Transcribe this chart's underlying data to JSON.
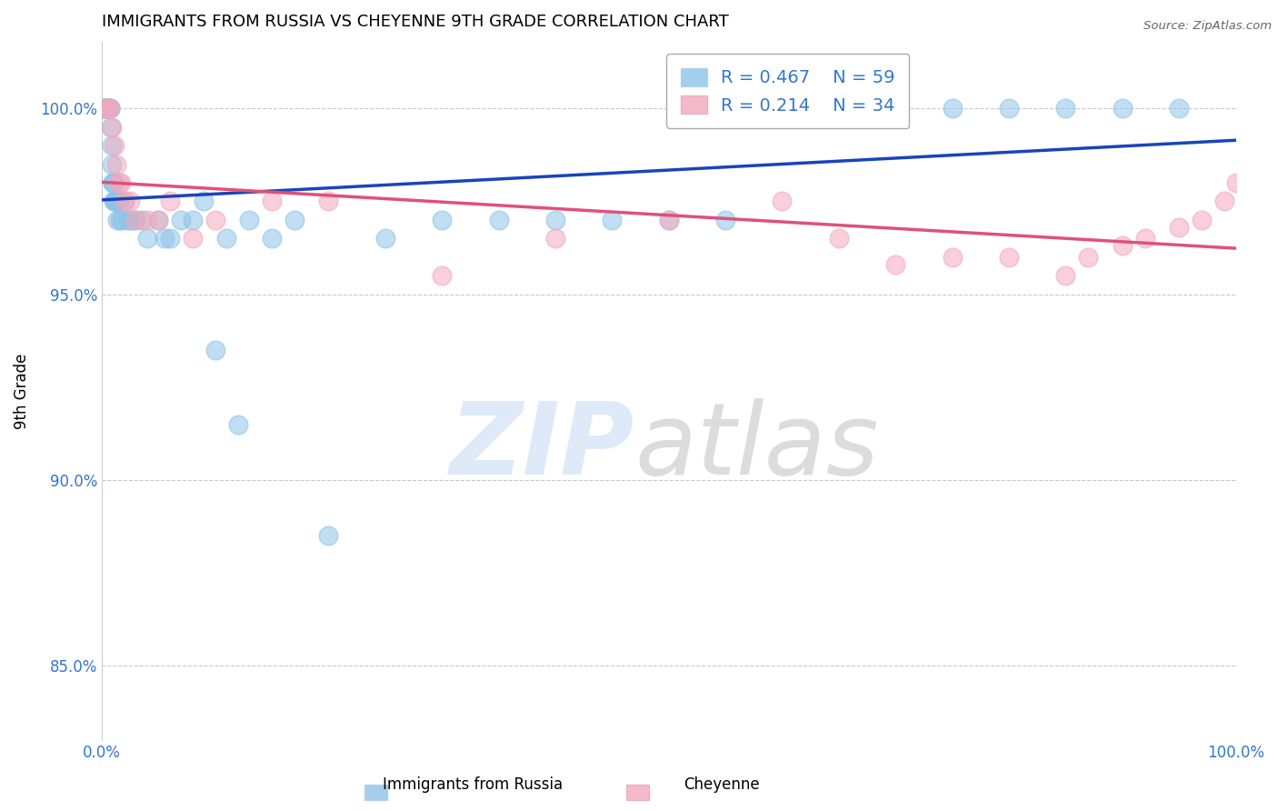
{
  "title": "IMMIGRANTS FROM RUSSIA VS CHEYENNE 9TH GRADE CORRELATION CHART",
  "source": "Source: ZipAtlas.com",
  "ylabel": "9th Grade",
  "xlim": [
    0,
    100
  ],
  "ylim": [
    83.0,
    101.8
  ],
  "yticks": [
    85.0,
    90.0,
    95.0,
    100.0
  ],
  "ytick_labels": [
    "85.0%",
    "90.0%",
    "95.0%",
    "100.0%"
  ],
  "legend_r1": "R = 0.467",
  "legend_n1": "N = 59",
  "legend_r2": "R = 0.214",
  "legend_n2": "N = 34",
  "color_blue": "#8EC4E8",
  "color_pink": "#F4A8BC",
  "trendline_blue": "#1A44BB",
  "trendline_pink": "#E0507A",
  "watermark_zip": "ZIP",
  "watermark_atlas": "atlas",
  "blue_x": [
    0.15,
    0.2,
    0.25,
    0.3,
    0.4,
    0.5,
    0.55,
    0.6,
    0.65,
    0.7,
    0.75,
    0.8,
    0.85,
    0.9,
    0.95,
    1.0,
    1.05,
    1.1,
    1.15,
    1.2,
    1.3,
    1.4,
    1.5,
    1.6,
    1.8,
    2.0,
    2.3,
    2.6,
    3.0,
    3.5,
    4.0,
    5.0,
    5.5,
    6.0,
    7.0,
    8.0,
    9.0,
    10.0,
    11.0,
    12.0,
    13.0,
    15.0,
    17.0,
    20.0,
    25.0,
    30.0,
    35.0,
    40.0,
    45.0,
    50.0,
    55.0,
    60.0,
    65.0,
    70.0,
    75.0,
    80.0,
    85.0,
    90.0,
    95.0
  ],
  "blue_y": [
    100.0,
    100.0,
    100.0,
    100.0,
    100.0,
    100.0,
    100.0,
    100.0,
    100.0,
    100.0,
    100.0,
    99.5,
    99.0,
    98.5,
    98.0,
    98.0,
    97.5,
    97.5,
    98.0,
    97.5,
    97.5,
    97.0,
    97.5,
    97.0,
    97.0,
    97.5,
    97.0,
    97.0,
    97.0,
    97.0,
    96.5,
    97.0,
    96.5,
    96.5,
    97.0,
    97.0,
    97.5,
    93.5,
    96.5,
    91.5,
    97.0,
    96.5,
    97.0,
    88.5,
    96.5,
    97.0,
    97.0,
    97.0,
    97.0,
    97.0,
    97.0,
    100.0,
    100.0,
    100.0,
    100.0,
    100.0,
    100.0,
    100.0,
    100.0
  ],
  "pink_x": [
    0.3,
    0.5,
    0.7,
    0.9,
    1.1,
    1.3,
    1.5,
    1.7,
    2.0,
    2.5,
    3.0,
    4.0,
    5.0,
    6.0,
    8.0,
    10.0,
    15.0,
    20.0,
    30.0,
    40.0,
    50.0,
    60.0,
    65.0,
    70.0,
    75.0,
    80.0,
    85.0,
    87.0,
    90.0,
    92.0,
    95.0,
    97.0,
    99.0,
    100.0
  ],
  "pink_y": [
    100.0,
    100.0,
    100.0,
    99.5,
    99.0,
    98.5,
    98.0,
    98.0,
    97.5,
    97.5,
    97.0,
    97.0,
    97.0,
    97.5,
    96.5,
    97.0,
    97.5,
    97.5,
    95.5,
    96.5,
    97.0,
    97.5,
    96.5,
    95.8,
    96.0,
    96.0,
    95.5,
    96.0,
    96.3,
    96.5,
    96.8,
    97.0,
    97.5,
    98.0
  ]
}
